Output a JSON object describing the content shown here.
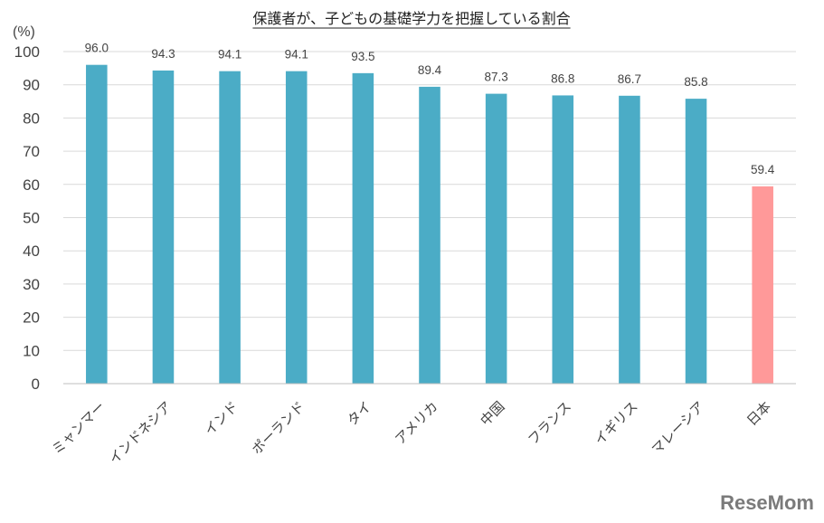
{
  "chart_data": {
    "type": "bar",
    "title": "保護者が、子どもの基礎学力を把握している割合",
    "unit_label": "(%)",
    "xlabel": "",
    "ylabel": "",
    "ylim": [
      0,
      100
    ],
    "yticks": [
      0,
      10,
      20,
      30,
      40,
      50,
      60,
      70,
      80,
      90,
      100
    ],
    "grid": true,
    "legend": "none",
    "categories": [
      "ミャンマー",
      "インドネシア",
      "インド",
      "ポーランド",
      "タイ",
      "アメリカ",
      "中国",
      "フランス",
      "イギリス",
      "マレーシア",
      "日本"
    ],
    "values": [
      96.0,
      94.3,
      94.1,
      94.1,
      93.5,
      89.4,
      87.3,
      86.8,
      86.7,
      85.8,
      59.4
    ],
    "value_labels": [
      "96.0",
      "94.3",
      "94.1",
      "94.1",
      "93.5",
      "89.4",
      "87.3",
      "86.8",
      "86.7",
      "85.8",
      "59.4"
    ],
    "colors": {
      "bar": "#4bacc6",
      "highlight": "#ff9999",
      "grid": "#d9d9d9",
      "axis": "#bfbfbf"
    },
    "highlight_category": "日本"
  },
  "watermark": "ReseMom"
}
